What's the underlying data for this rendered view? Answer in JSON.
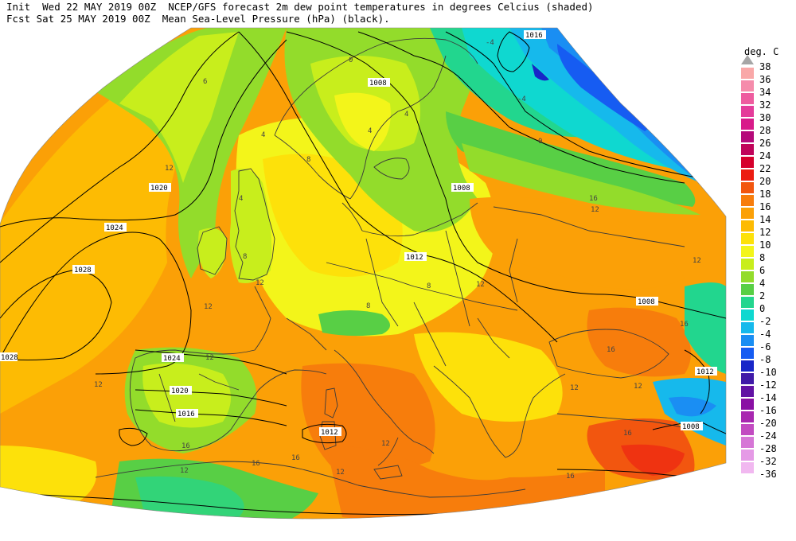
{
  "header": {
    "line1_left": "Init  Wed 22 MAY 2019 00Z",
    "line1_right": "NCEP/GFS forecast 2m dew point temperatures in degrees Celcius (shaded)",
    "line2_left": "Fcst Sat 25 MAY 2019 00Z",
    "line2_right": "Mean Sea-Level Pressure (hPa) (black)."
  },
  "colorbar": {
    "title": "deg. C",
    "levels": [
      {
        "label": "38",
        "color": null
      },
      {
        "label": "36",
        "color": "#f9a8a8"
      },
      {
        "label": "34",
        "color": "#f58cab"
      },
      {
        "label": "32",
        "color": "#ee5c9f"
      },
      {
        "label": "30",
        "color": "#e43c9a"
      },
      {
        "label": "28",
        "color": "#d81b8a"
      },
      {
        "label": "26",
        "color": "#b5097a"
      },
      {
        "label": "24",
        "color": "#c0045a"
      },
      {
        "label": "22",
        "color": "#d6002c"
      },
      {
        "label": "20",
        "color": "#ec1c12"
      },
      {
        "label": "18",
        "color": "#f2560f"
      },
      {
        "label": "16",
        "color": "#f77d0c"
      },
      {
        "label": "14",
        "color": "#fba007"
      },
      {
        "label": "12",
        "color": "#fdbb03"
      },
      {
        "label": "10",
        "color": "#fde10a"
      },
      {
        "label": "8",
        "color": "#f3f51a"
      },
      {
        "label": "6",
        "color": "#c8ee1c"
      },
      {
        "label": "4",
        "color": "#93dc2b"
      },
      {
        "label": "2",
        "color": "#58cf45"
      },
      {
        "label": "0",
        "color": "#22d68e"
      },
      {
        "label": "-2",
        "color": "#0fd8d0"
      },
      {
        "label": "-4",
        "color": "#16b9ec"
      },
      {
        "label": "-6",
        "color": "#1a8ef3"
      },
      {
        "label": "-8",
        "color": "#165cf2"
      },
      {
        "label": "-10",
        "color": "#1826c8"
      },
      {
        "label": "-12",
        "color": "#401aa8"
      },
      {
        "label": "-14",
        "color": "#6212a4"
      },
      {
        "label": "-16",
        "color": "#8a10a4"
      },
      {
        "label": "-20",
        "color": "#a827b0"
      },
      {
        "label": "-24",
        "color": "#c24bc1"
      },
      {
        "label": "-28",
        "color": "#d676d6"
      },
      {
        "label": "-32",
        "color": "#e59ae6"
      },
      {
        "label": "-36",
        "color": "#f1b8f0"
      }
    ]
  },
  "isobar_labels": [
    "1016",
    "1008",
    "1008",
    "1020",
    "1024",
    "1028",
    "1028",
    "1012",
    "1024",
    "1020",
    "1016",
    "1012",
    "1008",
    "1012",
    "1008"
  ],
  "dewpoint_labels": [
    "0",
    "4",
    "4",
    "4",
    "6",
    "8",
    "12",
    "12",
    "8",
    "12",
    "12",
    "12",
    "16",
    "16",
    "12",
    "12",
    "16",
    "0",
    "-4",
    "-4",
    "12",
    "16",
    "16",
    "12",
    "12",
    "8",
    "8",
    "12",
    "12",
    "16",
    "16",
    "16",
    "12",
    "4"
  ]
}
